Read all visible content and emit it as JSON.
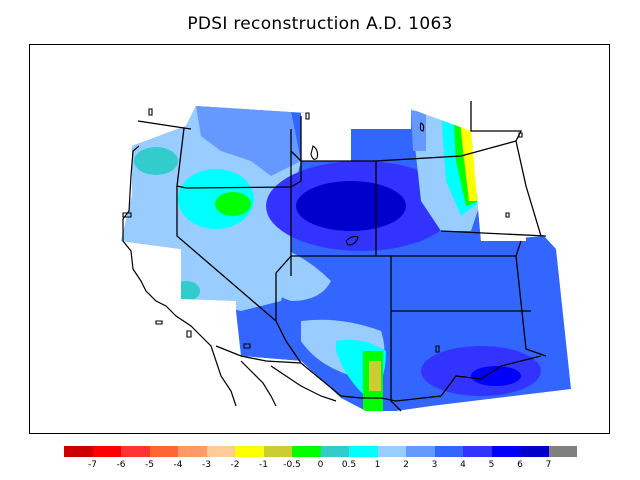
{
  "title": "PDSI reconstruction A.D. 1063",
  "legend": {
    "colors": [
      "#cc0000",
      "#ff0000",
      "#ff3333",
      "#ff6633",
      "#ff9966",
      "#ffcc99",
      "#ffff00",
      "#cccc33",
      "#00ff00",
      "#33cccc",
      "#00ffff",
      "#99ccff",
      "#6699ff",
      "#3366ff",
      "#3333ff",
      "#0000ff",
      "#0000cc",
      "#808080"
    ],
    "labels": [
      "-7",
      "-6",
      "-5",
      "-4",
      "-3",
      "-2",
      "-1",
      "-0.5",
      "0",
      "0.5",
      "1",
      "2",
      "3",
      "4",
      "5",
      "6",
      "7"
    ]
  },
  "map": {
    "region": "Western United States",
    "variable": "PDSI",
    "year": "A.D. 1063"
  }
}
